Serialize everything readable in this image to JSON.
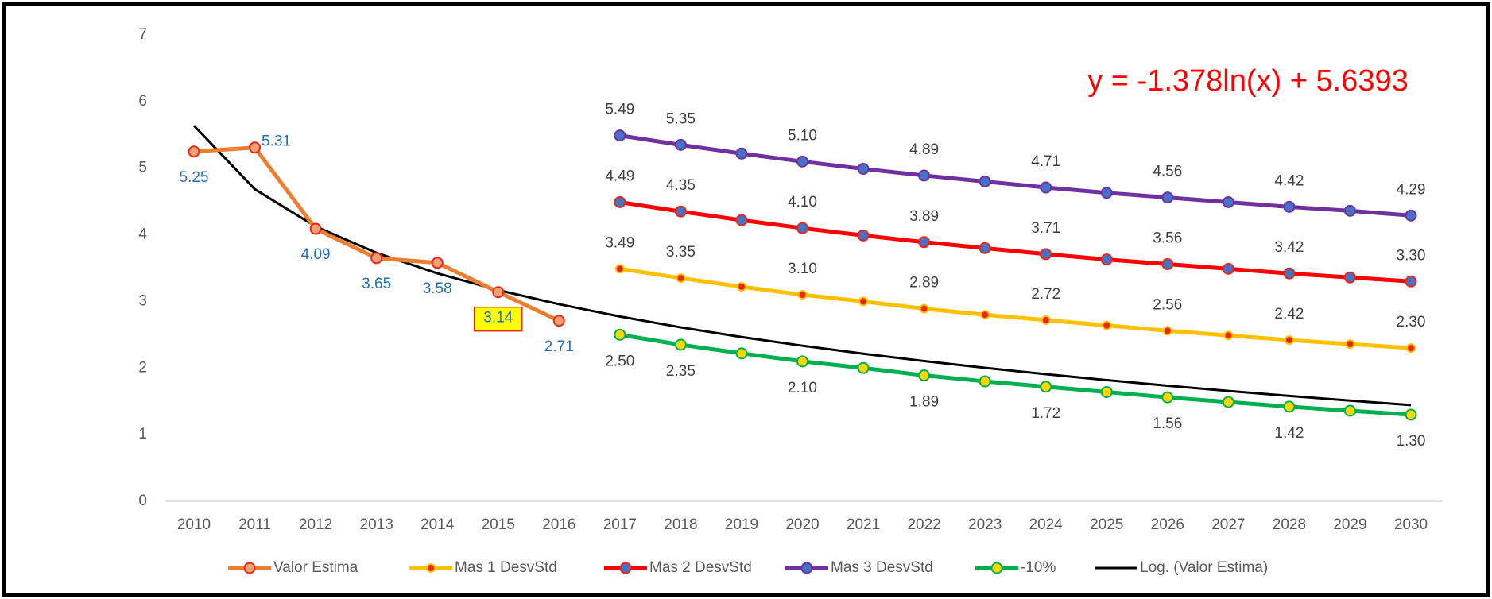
{
  "chart_data": {
    "type": "line",
    "annotation": "y = -1.378ln(x) + 5.6393",
    "categories": [
      "2010",
      "2011",
      "2012",
      "2013",
      "2014",
      "2015",
      "2016",
      "2017",
      "2018",
      "2019",
      "2020",
      "2021",
      "2022",
      "2023",
      "2024",
      "2025",
      "2026",
      "2027",
      "2028",
      "2029",
      "2030"
    ],
    "ylim": [
      0,
      7
    ],
    "yticks": [
      0,
      1,
      2,
      3,
      4,
      5,
      6,
      7
    ],
    "grid": false,
    "legend": "bottom",
    "series": [
      {
        "name": "Valor Estima",
        "color": "#ED7D31",
        "marker_color": "#F4A070",
        "marker_edge": "#E8261C",
        "label_color": "#1F6FBF",
        "values": [
          5.25,
          5.31,
          4.09,
          3.65,
          3.58,
          3.14,
          2.71,
          null,
          null,
          null,
          null,
          null,
          null,
          null,
          null,
          null,
          null,
          null,
          null,
          null,
          null
        ]
      },
      {
        "name": "Mas 1 DesvStd",
        "color": "#FFC000",
        "marker_color": "#E8261C",
        "marker_edge": "#FFC000",
        "label_color": "#404040",
        "values": [
          null,
          null,
          null,
          null,
          null,
          null,
          null,
          3.49,
          3.35,
          3.22,
          3.1,
          3.0,
          2.89,
          2.8,
          2.72,
          2.64,
          2.56,
          2.49,
          2.42,
          2.36,
          2.3
        ],
        "value_labels": [
          null,
          null,
          null,
          null,
          null,
          null,
          null,
          "3.49",
          "3.35",
          null,
          "3.10",
          null,
          "2.89",
          null,
          "2.72",
          null,
          "2.56",
          null,
          "2.42",
          null,
          "2.30"
        ]
      },
      {
        "name": "Mas 2 DesvStd",
        "color": "#FF0000",
        "marker_color": "#4472C4",
        "marker_edge": "#E8261C",
        "label_color": "#404040",
        "values": [
          null,
          null,
          null,
          null,
          null,
          null,
          null,
          4.49,
          4.35,
          4.22,
          4.1,
          3.99,
          3.89,
          3.8,
          3.71,
          3.63,
          3.56,
          3.49,
          3.42,
          3.36,
          3.3
        ],
        "value_labels": [
          null,
          null,
          null,
          null,
          null,
          null,
          null,
          "4.49",
          "4.35",
          null,
          "4.10",
          null,
          "3.89",
          null,
          "3.71",
          null,
          "3.56",
          null,
          "3.42",
          null,
          "3.30"
        ]
      },
      {
        "name": "Mas 3 DesvStd",
        "color": "#7030A0",
        "marker_color": "#4472C4",
        "marker_edge": "#7030A0",
        "label_color": "#404040",
        "values": [
          null,
          null,
          null,
          null,
          null,
          null,
          null,
          5.49,
          5.35,
          5.22,
          5.1,
          4.99,
          4.89,
          4.8,
          4.71,
          4.63,
          4.56,
          4.49,
          4.42,
          4.36,
          4.29
        ],
        "value_labels": [
          null,
          null,
          null,
          null,
          null,
          null,
          null,
          "5.49",
          "5.35",
          null,
          "5.10",
          null,
          "4.89",
          null,
          "4.71",
          null,
          "4.56",
          null,
          "4.42",
          null,
          "4.29"
        ]
      },
      {
        "name": "-10%",
        "color": "#00B050",
        "marker_color": "#FFD700",
        "marker_edge": "#00B050",
        "label_color": "#404040",
        "values": [
          null,
          null,
          null,
          null,
          null,
          null,
          null,
          2.5,
          2.35,
          2.22,
          2.1,
          2.0,
          1.89,
          1.8,
          1.72,
          1.64,
          1.56,
          1.49,
          1.42,
          1.36,
          1.3
        ],
        "value_labels": [
          null,
          null,
          null,
          null,
          null,
          null,
          null,
          "2.50",
          "2.35",
          null,
          "2.10",
          null,
          "1.89",
          null,
          "1.72",
          null,
          "1.56",
          null,
          "1.42",
          null,
          "1.30"
        ]
      },
      {
        "name": "Log. (Valor Estima)",
        "color": "#000000",
        "values": [
          5.639,
          4.684,
          4.125,
          3.729,
          3.422,
          3.17,
          2.958,
          2.774,
          2.611,
          2.466,
          2.335,
          2.215,
          2.105,
          2.003,
          1.908,
          1.819,
          1.735,
          1.656,
          1.582,
          1.511,
          1.444
        ]
      }
    ]
  }
}
